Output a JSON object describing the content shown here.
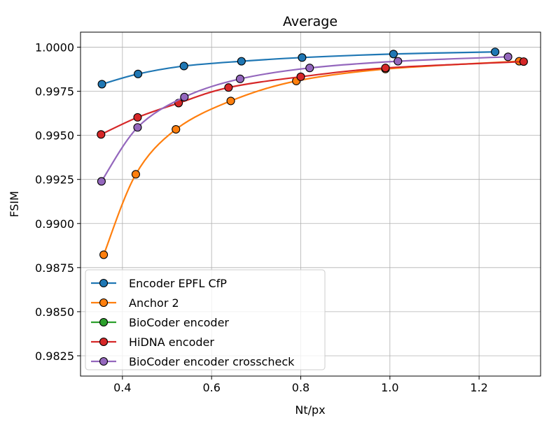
{
  "chart_data": {
    "type": "line",
    "title": "Average",
    "xlabel": "Nt/px",
    "ylabel": "FSIM",
    "xlim": [
      0.306,
      1.338
    ],
    "ylim": [
      0.98135,
      1.00085
    ],
    "x_ticks": [
      "0.4",
      "0.6",
      "0.8",
      "1.0",
      "1.2"
    ],
    "x_tick_values": [
      0.4,
      0.6,
      0.8,
      1.0,
      1.2
    ],
    "y_ticks": [
      "0.9825",
      "0.9850",
      "0.9875",
      "0.9900",
      "0.9925",
      "0.9950",
      "0.9975",
      "1.0000"
    ],
    "y_tick_values": [
      0.9825,
      0.985,
      0.9875,
      0.99,
      0.9925,
      0.995,
      0.9975,
      1.0
    ],
    "grid": true,
    "legend_position": "lower-left",
    "series": [
      {
        "name": "Encoder EPFL CfP",
        "color": "#1f77b4",
        "x": [
          0.354,
          0.435,
          0.538,
          0.667,
          0.803,
          1.008,
          1.236
        ],
        "y": [
          0.9979,
          0.99848,
          0.99893,
          0.9992,
          0.99941,
          0.99961,
          0.99973
        ]
      },
      {
        "name": "Anchor 2",
        "color": "#ff7f0e",
        "x": [
          0.358,
          0.43,
          0.52,
          0.643,
          0.79,
          0.99,
          1.29
        ],
        "y": [
          0.98823,
          0.99279,
          0.99534,
          0.99695,
          0.99808,
          0.99876,
          0.9992
        ]
      },
      {
        "name": "BioCoder encoder",
        "color": "#2ca02c",
        "x": [],
        "y": []
      },
      {
        "name": "HiDNA encoder",
        "color": "#d62728",
        "x": [
          0.352,
          0.434,
          0.526,
          0.638,
          0.8,
          0.99,
          1.3
        ],
        "y": [
          0.99505,
          0.99602,
          0.99683,
          0.99771,
          0.99832,
          0.99882,
          0.99918
        ]
      },
      {
        "name": "BioCoder encoder crosscheck",
        "color": "#9467bd",
        "x": [
          0.353,
          0.434,
          0.539,
          0.664,
          0.82,
          1.018,
          1.265
        ],
        "y": [
          0.99239,
          0.99545,
          0.99717,
          0.9982,
          0.99882,
          0.9992,
          0.99945
        ]
      }
    ]
  }
}
